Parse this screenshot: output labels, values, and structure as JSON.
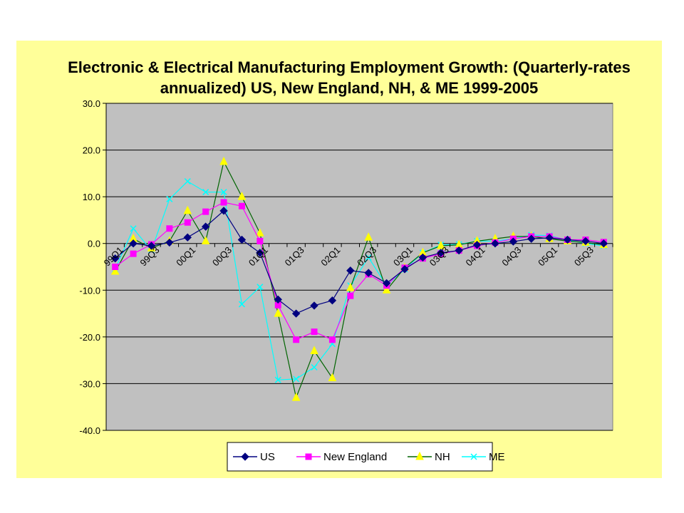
{
  "chart_data": {
    "type": "line",
    "title_lines": [
      "Electronic & Electrical Manufacturing Employment Growth: (Quarterly-rates",
      "annualized) US, New England, NH, & ME 1999-2005"
    ],
    "xlabel": "",
    "ylabel": "",
    "ylim": [
      -40,
      30
    ],
    "yticks": [
      "30.0",
      "20.0",
      "10.0",
      "0.0",
      "-10.0",
      "-20.0",
      "-30.0",
      "-40.0"
    ],
    "ytick_values": [
      30,
      20,
      10,
      0,
      -10,
      -20,
      -30,
      -40
    ],
    "categories": [
      "99Q1",
      "99Q2",
      "99Q3",
      "99Q4",
      "00Q1",
      "00Q2",
      "00Q3",
      "00Q4",
      "01Q1",
      "01Q2",
      "01Q3",
      "01Q4",
      "02Q1",
      "02Q2",
      "02Q3",
      "02Q4",
      "03Q1",
      "03Q2",
      "03Q3",
      "03Q4",
      "04Q1",
      "04Q2",
      "04Q3",
      "04Q4",
      "05Q1",
      "05Q2",
      "05Q3",
      "05Q4"
    ],
    "x_tick_labels": [
      "99Q1",
      "99Q3",
      "00Q1",
      "00Q3",
      "01Q1",
      "01Q3",
      "02Q1",
      "02Q3",
      "03Q1",
      "03Q3",
      "04Q1",
      "04Q3",
      "05Q1",
      "05Q3"
    ],
    "x_tick_indices": [
      0,
      2,
      4,
      6,
      8,
      10,
      12,
      14,
      16,
      18,
      20,
      22,
      24,
      26
    ],
    "grid": true,
    "legend_position": "bottom",
    "plot_background": "#c0c0c0",
    "panel_background": "#ffff99",
    "series": [
      {
        "name": "US",
        "color": "#000080",
        "marker": "diamond",
        "values": [
          -3.2,
          0.0,
          -0.5,
          0.2,
          1.3,
          3.6,
          7.0,
          0.8,
          -2.0,
          -12.0,
          -15.0,
          -13.3,
          -12.2,
          -5.8,
          -6.3,
          -8.5,
          -5.5,
          -3.0,
          -2.0,
          -1.5,
          -0.3,
          0.0,
          0.4,
          1.0,
          1.2,
          0.8,
          0.5,
          0.0
        ]
      },
      {
        "name": "New England",
        "color": "#ff00ff",
        "marker": "square",
        "values": [
          -5.0,
          -2.2,
          -0.2,
          3.2,
          4.5,
          6.8,
          8.8,
          8.0,
          0.5,
          -13.2,
          -20.6,
          -18.9,
          -20.6,
          -11.2,
          -6.6,
          -9.0,
          -5.2,
          -3.2,
          -2.2,
          -1.5,
          -0.5,
          0.2,
          1.0,
          1.5,
          1.5,
          0.8,
          0.8,
          0.3
        ]
      },
      {
        "name": "NH",
        "color": "#006400",
        "marker": "triangle",
        "marker_fill": "#ffff00",
        "values": [
          -6.0,
          1.0,
          -1.0,
          0.5,
          7.0,
          0.5,
          17.5,
          10.0,
          2.2,
          -15.0,
          -33.0,
          -23.0,
          -28.8,
          -9.5,
          1.3,
          -10.0,
          -5.2,
          -2.0,
          -0.5,
          -0.3,
          0.5,
          1.0,
          1.5,
          1.5,
          1.0,
          0.5,
          0.2,
          -0.3
        ]
      },
      {
        "name": "ME",
        "color": "#00ffff",
        "marker": "x",
        "values": [
          -5.5,
          3.2,
          -1.5,
          9.5,
          13.3,
          11.0,
          11.0,
          -13.0,
          -9.3,
          -29.2,
          -29.0,
          -26.5,
          -21.5,
          -9.0,
          -3.0,
          -9.0,
          -5.5,
          -2.0,
          -0.3,
          -0.2,
          0.5,
          0.5,
          1.0,
          1.8,
          1.7,
          0.7,
          0.0,
          -0.5
        ]
      }
    ]
  }
}
